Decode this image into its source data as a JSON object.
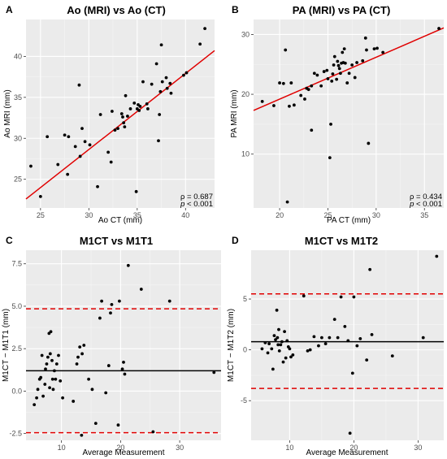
{
  "chart_data": [
    {
      "panel": "A",
      "type": "scatter",
      "title": "Ao (MRI) vs Ao (CT)",
      "xlabel": "Ao CT (mm)",
      "ylabel": "Ao MRI (mm)",
      "xlim": [
        23.5,
        43
      ],
      "ylim": [
        21.5,
        44.5
      ],
      "xticks": [
        25,
        30,
        35,
        40
      ],
      "yticks": [
        25,
        30,
        35,
        40
      ],
      "grid": true,
      "stats": [
        "ρ = 0.687",
        "p < 0.001"
      ],
      "fit_line": {
        "x": [
          23.5,
          43
        ],
        "y": [
          22.6,
          40.7
        ],
        "color": "#e00000"
      },
      "points": [
        [
          24.0,
          26.6
        ],
        [
          25.0,
          22.9
        ],
        [
          25.7,
          30.2
        ],
        [
          26.8,
          26.8
        ],
        [
          27.5,
          30.4
        ],
        [
          27.8,
          25.6
        ],
        [
          27.9,
          30.2
        ],
        [
          28.6,
          29.0
        ],
        [
          29.0,
          36.5
        ],
        [
          29.1,
          27.8
        ],
        [
          29.3,
          31.2
        ],
        [
          29.6,
          29.6
        ],
        [
          30.1,
          29.2
        ],
        [
          30.9,
          24.1
        ],
        [
          31.2,
          32.9
        ],
        [
          32.0,
          28.3
        ],
        [
          32.3,
          27.1
        ],
        [
          32.4,
          33.3
        ],
        [
          32.7,
          31.0
        ],
        [
          33.0,
          31.2
        ],
        [
          33.4,
          33.0
        ],
        [
          33.5,
          32.6
        ],
        [
          33.6,
          31.9
        ],
        [
          33.7,
          31.4
        ],
        [
          33.8,
          35.2
        ],
        [
          34.0,
          32.7
        ],
        [
          34.3,
          33.6
        ],
        [
          34.7,
          34.3
        ],
        [
          34.9,
          23.5
        ],
        [
          35.0,
          33.6
        ],
        [
          35.1,
          34.1
        ],
        [
          35.2,
          33.4
        ],
        [
          35.3,
          33.9
        ],
        [
          35.6,
          36.9
        ],
        [
          36.0,
          34.2
        ],
        [
          36.1,
          33.6
        ],
        [
          36.5,
          36.6
        ],
        [
          37.0,
          39.1
        ],
        [
          37.2,
          29.7
        ],
        [
          37.3,
          32.9
        ],
        [
          37.4,
          35.7
        ],
        [
          37.6,
          36.9
        ],
        [
          38.0,
          37.4
        ],
        [
          38.1,
          36.1
        ],
        [
          38.4,
          36.7
        ],
        [
          38.5,
          35.5
        ],
        [
          39.8,
          37.7
        ],
        [
          40.1,
          38.0
        ],
        [
          37.5,
          41.4
        ],
        [
          41.5,
          41.5
        ],
        [
          42.0,
          43.4
        ]
      ]
    },
    {
      "panel": "B",
      "type": "scatter",
      "title": "PA (MRI) vs PA (CT)",
      "xlabel": "PA CT (mm)",
      "ylabel": "PA MRI (mm)",
      "xlim": [
        17.3,
        37
      ],
      "ylim": [
        1,
        32.5
      ],
      "xticks": [
        20,
        25,
        30,
        35
      ],
      "yticks": [
        10,
        20,
        30
      ],
      "grid": true,
      "stats": [
        "ρ = 0.434",
        "p < 0.001"
      ],
      "fit_line": {
        "x": [
          17.3,
          37
        ],
        "y": [
          17.3,
          31.1
        ],
        "color": "#e00000"
      },
      "points": [
        [
          18.2,
          18.8
        ],
        [
          19.4,
          18.1
        ],
        [
          20.0,
          21.9
        ],
        [
          20.4,
          21.8
        ],
        [
          20.6,
          27.4
        ],
        [
          20.8,
          2.0
        ],
        [
          21.0,
          18.0
        ],
        [
          21.2,
          21.9
        ],
        [
          21.5,
          18.2
        ],
        [
          22.2,
          19.8
        ],
        [
          22.6,
          19.2
        ],
        [
          22.8,
          21.0
        ],
        [
          23.0,
          20.8
        ],
        [
          23.3,
          21.4
        ],
        [
          23.3,
          14.0
        ],
        [
          23.6,
          23.5
        ],
        [
          23.9,
          23.2
        ],
        [
          24.3,
          21.4
        ],
        [
          24.6,
          23.8
        ],
        [
          24.9,
          24.0
        ],
        [
          25.0,
          22.6
        ],
        [
          25.2,
          9.4
        ],
        [
          25.3,
          15.0
        ],
        [
          25.4,
          22.2
        ],
        [
          25.5,
          23.4
        ],
        [
          25.6,
          24.9
        ],
        [
          25.7,
          26.3
        ],
        [
          25.9,
          22.5
        ],
        [
          26.0,
          25.5
        ],
        [
          26.1,
          24.8
        ],
        [
          26.2,
          24.3
        ],
        [
          26.3,
          23.5
        ],
        [
          26.4,
          25.2
        ],
        [
          26.5,
          27.0
        ],
        [
          26.6,
          25.3
        ],
        [
          26.7,
          27.6
        ],
        [
          26.8,
          25.2
        ],
        [
          27.0,
          21.9
        ],
        [
          27.2,
          23.5
        ],
        [
          27.5,
          24.9
        ],
        [
          27.8,
          22.8
        ],
        [
          28.0,
          25.3
        ],
        [
          28.6,
          25.6
        ],
        [
          28.9,
          29.4
        ],
        [
          29.0,
          27.4
        ],
        [
          29.2,
          11.8
        ],
        [
          29.8,
          27.6
        ],
        [
          30.1,
          27.7
        ],
        [
          30.7,
          27.0
        ],
        [
          36.5,
          31.0
        ]
      ]
    },
    {
      "panel": "C",
      "type": "scatter",
      "title": "M1CT vs M1T1",
      "xlabel": "Average Measurement",
      "ylabel": "M1CT − M1T1 (mm)",
      "xlim": [
        4,
        37
      ],
      "ylim": [
        -2.9,
        8.3
      ],
      "xticks": [
        10,
        20,
        30
      ],
      "yticks": [
        -2.5,
        0.0,
        2.5,
        5.0,
        7.5
      ],
      "ytick_labels": [
        "-2.5",
        "0.0",
        "2.5",
        "5.0",
        "7.5"
      ],
      "grid": true,
      "mean_line": 1.2,
      "limits_of_agreement": [
        4.85,
        -2.45
      ],
      "points": [
        [
          5.4,
          -0.8
        ],
        [
          5.8,
          -0.4
        ],
        [
          6.0,
          0.1
        ],
        [
          6.3,
          0.7
        ],
        [
          6.5,
          0.8
        ],
        [
          6.7,
          2.1
        ],
        [
          6.9,
          -0.3
        ],
        [
          7.2,
          0.4
        ],
        [
          7.3,
          1.3
        ],
        [
          7.5,
          1.6
        ],
        [
          7.7,
          2.0
        ],
        [
          7.9,
          3.4
        ],
        [
          8.0,
          0.2
        ],
        [
          8.1,
          2.2
        ],
        [
          8.2,
          3.5
        ],
        [
          8.4,
          1.8
        ],
        [
          8.5,
          0.7
        ],
        [
          8.6,
          0.1
        ],
        [
          8.8,
          1.2
        ],
        [
          9.0,
          0.7
        ],
        [
          9.2,
          1.6
        ],
        [
          9.5,
          2.1
        ],
        [
          9.8,
          0.6
        ],
        [
          10.2,
          -0.4
        ],
        [
          12.0,
          -0.6
        ],
        [
          12.6,
          1.6
        ],
        [
          12.8,
          2.0
        ],
        [
          13.1,
          2.6
        ],
        [
          13.4,
          -2.6
        ],
        [
          13.5,
          2.2
        ],
        [
          13.8,
          2.7
        ],
        [
          14.6,
          0.7
        ],
        [
          15.2,
          0.1
        ],
        [
          15.8,
          -1.9
        ],
        [
          16.5,
          4.3
        ],
        [
          16.8,
          5.3
        ],
        [
          17.5,
          -0.1
        ],
        [
          18.0,
          1.5
        ],
        [
          18.3,
          4.6
        ],
        [
          18.5,
          5.1
        ],
        [
          19.6,
          -2.0
        ],
        [
          19.8,
          5.3
        ],
        [
          20.3,
          1.3
        ],
        [
          20.5,
          1.7
        ],
        [
          20.7,
          1.0
        ],
        [
          21.3,
          7.4
        ],
        [
          23.5,
          6.0
        ],
        [
          25.5,
          -2.4
        ],
        [
          28.3,
          5.3
        ],
        [
          35.8,
          1.1
        ]
      ]
    },
    {
      "panel": "D",
      "type": "scatter",
      "title": "M1CT vs M1T2",
      "xlabel": "Average Measurement",
      "ylabel": "M1CT − M1T2 (mm)",
      "xlim": [
        4,
        34
      ],
      "ylim": [
        -8.9,
        9.8
      ],
      "xticks": [
        10,
        20,
        30
      ],
      "yticks": [
        -5,
        0,
        5
      ],
      "ytick_labels": [
        "-5",
        "0",
        "5"
      ],
      "grid": true,
      "mean_line": 0.8,
      "limits_of_agreement": [
        5.5,
        -3.8
      ],
      "points": [
        [
          5.7,
          0.1
        ],
        [
          6.2,
          0.7
        ],
        [
          6.6,
          -0.3
        ],
        [
          6.8,
          0.6
        ],
        [
          7.2,
          0.1
        ],
        [
          7.4,
          -1.9
        ],
        [
          7.6,
          1.4
        ],
        [
          7.8,
          1.0
        ],
        [
          8.0,
          3.9
        ],
        [
          8.1,
          1.2
        ],
        [
          8.2,
          0.5
        ],
        [
          8.3,
          2.0
        ],
        [
          8.4,
          -0.1
        ],
        [
          8.6,
          0.5
        ],
        [
          8.8,
          0.8
        ],
        [
          9.0,
          -1.2
        ],
        [
          9.2,
          1.8
        ],
        [
          9.4,
          -0.8
        ],
        [
          9.6,
          0.9
        ],
        [
          9.8,
          0.3
        ],
        [
          10.0,
          0.1
        ],
        [
          10.2,
          -0.7
        ],
        [
          10.5,
          -0.5
        ],
        [
          12.2,
          5.3
        ],
        [
          12.8,
          -0.1
        ],
        [
          13.2,
          0.0
        ],
        [
          13.8,
          1.3
        ],
        [
          14.5,
          0.4
        ],
        [
          15.0,
          1.2
        ],
        [
          15.6,
          0.6
        ],
        [
          16.2,
          1.2
        ],
        [
          17.0,
          3.0
        ],
        [
          17.5,
          1.2
        ],
        [
          18.0,
          5.2
        ],
        [
          18.6,
          2.3
        ],
        [
          19.1,
          0.9
        ],
        [
          19.4,
          -8.2
        ],
        [
          19.8,
          -2.3
        ],
        [
          20.0,
          5.2
        ],
        [
          20.5,
          0.4
        ],
        [
          21.0,
          1.1
        ],
        [
          22.0,
          -1.0
        ],
        [
          22.8,
          1.5
        ],
        [
          22.5,
          7.9
        ],
        [
          26.0,
          -0.6
        ],
        [
          30.8,
          1.2
        ],
        [
          32.9,
          9.2
        ]
      ]
    }
  ],
  "panel_letters": [
    "A",
    "B",
    "C",
    "D"
  ]
}
